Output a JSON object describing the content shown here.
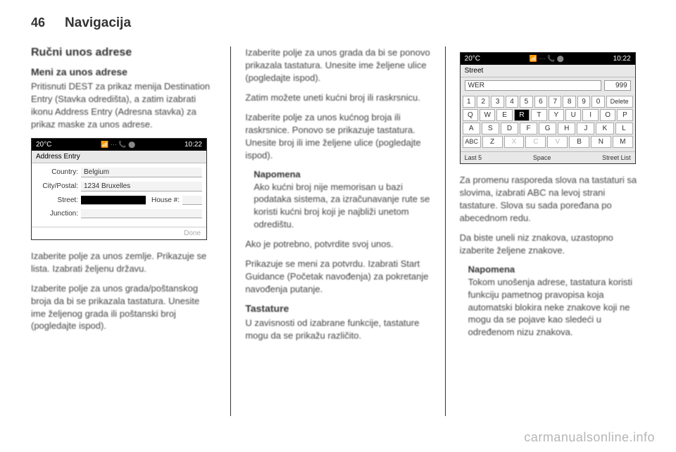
{
  "header": {
    "pageNum": "46",
    "title": "Navigacija"
  },
  "col1": {
    "sectionTitle": "Ručni unos adrese",
    "subTitle": "Meni za unos adrese",
    "p1": "Pritisnuti DEST za prikaz menija Destination Entry (Stavka odredišta), a zatim izabrati ikonu Address Entry (Adresna stavka) za prikaz maske za unos adrese.",
    "p2": "Izaberite polje za unos zemlje. Prikazuje se lista. Izabrati željenu državu.",
    "p3": "Izaberite polje za unos grada/poštanskog broja da bi se prikazala tastatura. Unesite ime željenog grada ili poštanski broj (pogledajte ispod).",
    "device1": {
      "temp": "20°C",
      "time": "10:22",
      "title": "Address Entry",
      "countryLbl": "Country:",
      "countryVal": "Belgium",
      "cityLbl": "City/Postal:",
      "cityVal": "1234 Bruxelles",
      "streetLbl": "Street:",
      "houseLbl": "House #:",
      "junctionLbl": "Junction:",
      "done": "Done"
    }
  },
  "col2": {
    "p1": "Izaberite polje za unos grada da bi se ponovo prikazala tastatura. Unesite ime željene ulice (pogledajte ispod).",
    "p2": "Zatim možete uneti kućni broj ili raskrsnicu.",
    "p3": "Izaberite polje za unos kućnog broja ili raskrsnice. Ponovo se prikazuje tastatura. Unesite broj ili ime željene ulice (pogledajte ispod).",
    "noteLbl": "Napomena",
    "note": "Ako kućni broj nije memorisan u bazi podataka sistema, za izračunavanje rute se koristi kućni broj koji je najbliži unetom odredištu.",
    "p4": "Ako je potrebno, potvrdite svoj unos.",
    "p5": "Prikazuje se meni za potvrdu. Izabrati Start Guidance (Početak navođenja) za pokretanje navođenja putanje.",
    "kbTitle": "Tastature",
    "p6": "U zavisnosti od izabrane funkcije, tastature mogu da se prikažu različito."
  },
  "col3": {
    "device2": {
      "temp": "20°C",
      "time": "10:22",
      "title": "Street",
      "input1": "WER",
      "input2": "999",
      "delete": "Delete",
      "row1": [
        "1",
        "2",
        "3",
        "4",
        "5",
        "6",
        "7",
        "8",
        "9",
        "0"
      ],
      "row2": [
        "Q",
        "W",
        "E",
        "R",
        "T",
        "Y",
        "U",
        "I",
        "O",
        "P"
      ],
      "row3": [
        "A",
        "S",
        "D",
        "F",
        "G",
        "H",
        "J",
        "K",
        "L"
      ],
      "row4": [
        "ABC",
        "Z",
        "X",
        "C",
        "V",
        "B",
        "N",
        "M"
      ],
      "dimKeys": [
        "X",
        "C",
        "V"
      ],
      "hlKey": "R",
      "bottom": {
        "last5": "Last 5",
        "space": "Space",
        "list": "Street List"
      }
    },
    "p1": "Za promenu rasporeda slova na tastaturi sa slovima, izabrati ABC na levoj strani tastature. Slova su sada poređana po abecednom redu.",
    "p2": "Da biste uneli niz znakova, uzastopno izaberite željene znakove.",
    "noteLbl": "Napomena",
    "note": "Tokom unošenja adrese, tastatura koristi funkciju pametnog pravopisa koja automatski blokira neke znakove koji ne mogu da se pojave kao sledeći u određenom nizu znakova."
  },
  "watermark": "carmanualsonline.info"
}
